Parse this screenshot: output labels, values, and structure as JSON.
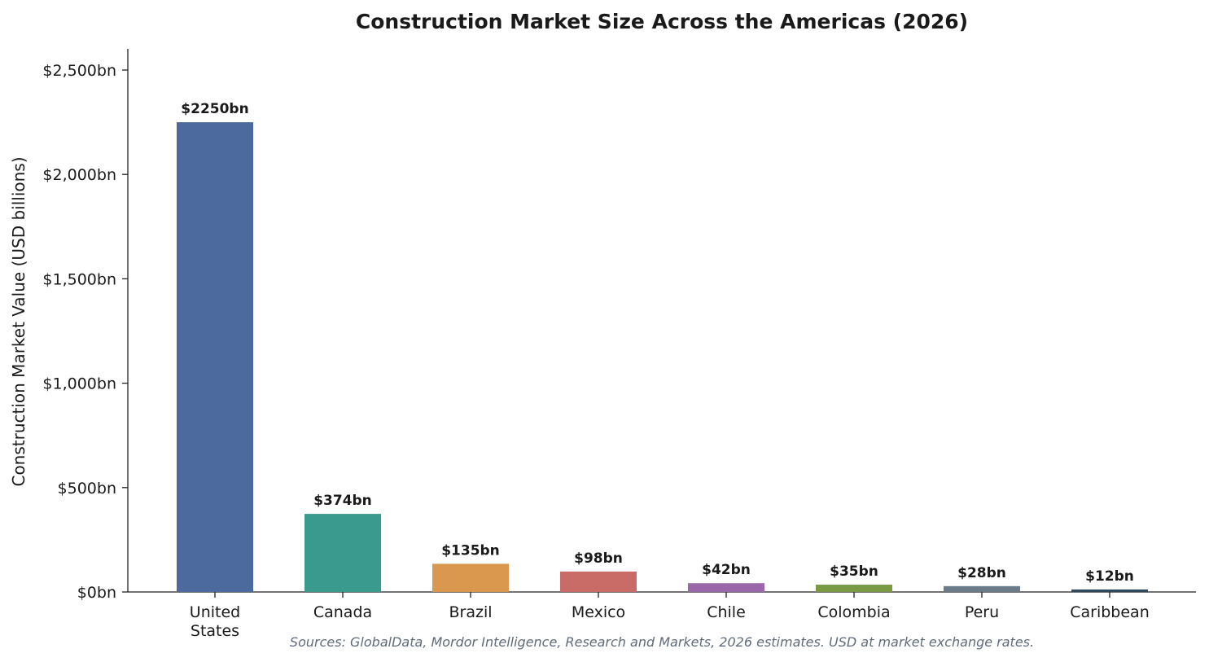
{
  "chart_data": {
    "type": "bar",
    "title": "Construction Market Size Across the Americas (2026)",
    "xlabel": "",
    "ylabel": "Construction Market Value (USD billions)",
    "categories": [
      "United States",
      "Canada",
      "Brazil",
      "Mexico",
      "Chile",
      "Colombia",
      "Peru",
      "Caribbean"
    ],
    "values": [
      2250,
      374,
      135,
      98,
      42,
      35,
      28,
      12
    ],
    "value_labels": [
      "$2250bn",
      "$374bn",
      "$135bn",
      "$98bn",
      "$42bn",
      "$35bn",
      "$28bn",
      "$12bn"
    ],
    "colors": [
      "#4c6a9e",
      "#3a9a8e",
      "#d9984d",
      "#c96b66",
      "#9c67aa",
      "#7a9a43",
      "#6b7b8a",
      "#2e4a5c"
    ],
    "ylim": [
      0,
      2600
    ],
    "yticks": [
      0,
      500,
      1000,
      1500,
      2000,
      2500
    ],
    "ytick_labels": [
      "$0bn",
      "$500bn",
      "$1,000bn",
      "$1,500bn",
      "$2,000bn",
      "$2,500bn"
    ],
    "grid": false,
    "legend": "none"
  },
  "source_note": "Sources: GlobalData, Mordor Intelligence, Research and Markets, 2026 estimates. USD at market exchange rates."
}
